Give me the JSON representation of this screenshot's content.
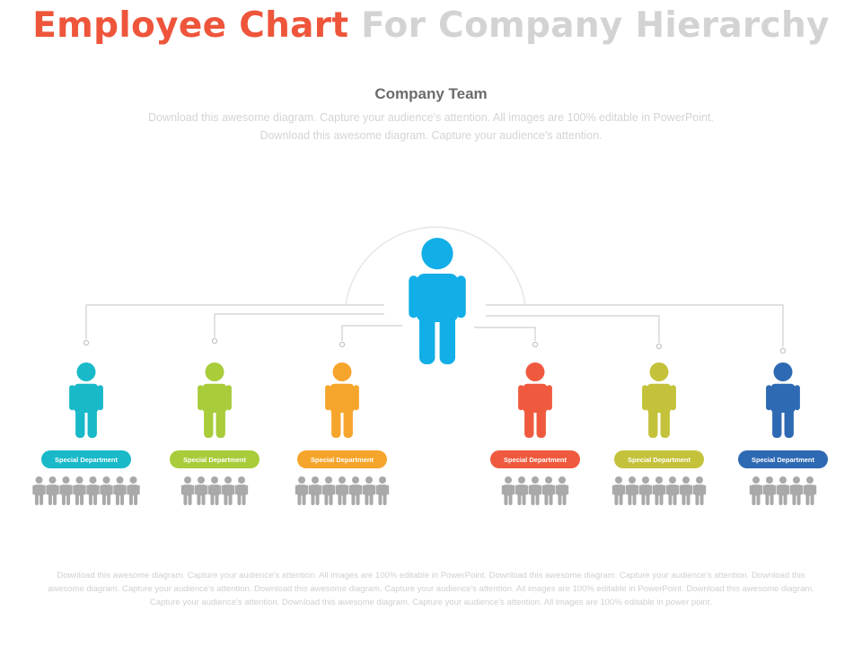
{
  "header": {
    "title_part1": "Employee Chart",
    "title_part2": "For Company Hierarchy",
    "subtitle": "Company Team",
    "intro_line1": "Download this awesome diagram. Capture your audience's attention. All images are 100% editable in PowerPoint.",
    "intro_line2": "Download this awesome diagram. Capture your audience's attention."
  },
  "colors": {
    "title_accent": "#ee553b",
    "title_muted": "#d3d3d3",
    "head": "#12aee7",
    "connector": "#cfcfcf",
    "team_member": "#a9a9a9"
  },
  "diagram": {
    "head": {
      "icon": "person-icon"
    },
    "departments": [
      {
        "label": "Special Department",
        "color": "#19b9c9",
        "team_size": 8
      },
      {
        "label": "Special Department",
        "color": "#a8cc3a",
        "team_size": 5
      },
      {
        "label": "Special Department",
        "color": "#f6a52c",
        "team_size": 7
      },
      {
        "label": "Special Department",
        "color": "#ef5a3e",
        "team_size": 5
      },
      {
        "label": "Special Department",
        "color": "#c4c23a",
        "team_size": 7
      },
      {
        "label": "Special Department",
        "color": "#2e69b3",
        "team_size": 5
      }
    ]
  },
  "footer": {
    "text": "Download this awesome diagram. Capture your audience's attention. All images are 100% editable in PowerPoint. Download this awesome diagram. Capture your audience's attention. Download this awesome diagram. Capture your audience's attention. Download this awesome diagram. Capture your audience's attention. All images are 100% editable in PowerPoint. Download this awesome diagram. Capture your audience's attention. Download this awesome diagram. Capture your audience's attention. All images are 100% editable in power point."
  }
}
